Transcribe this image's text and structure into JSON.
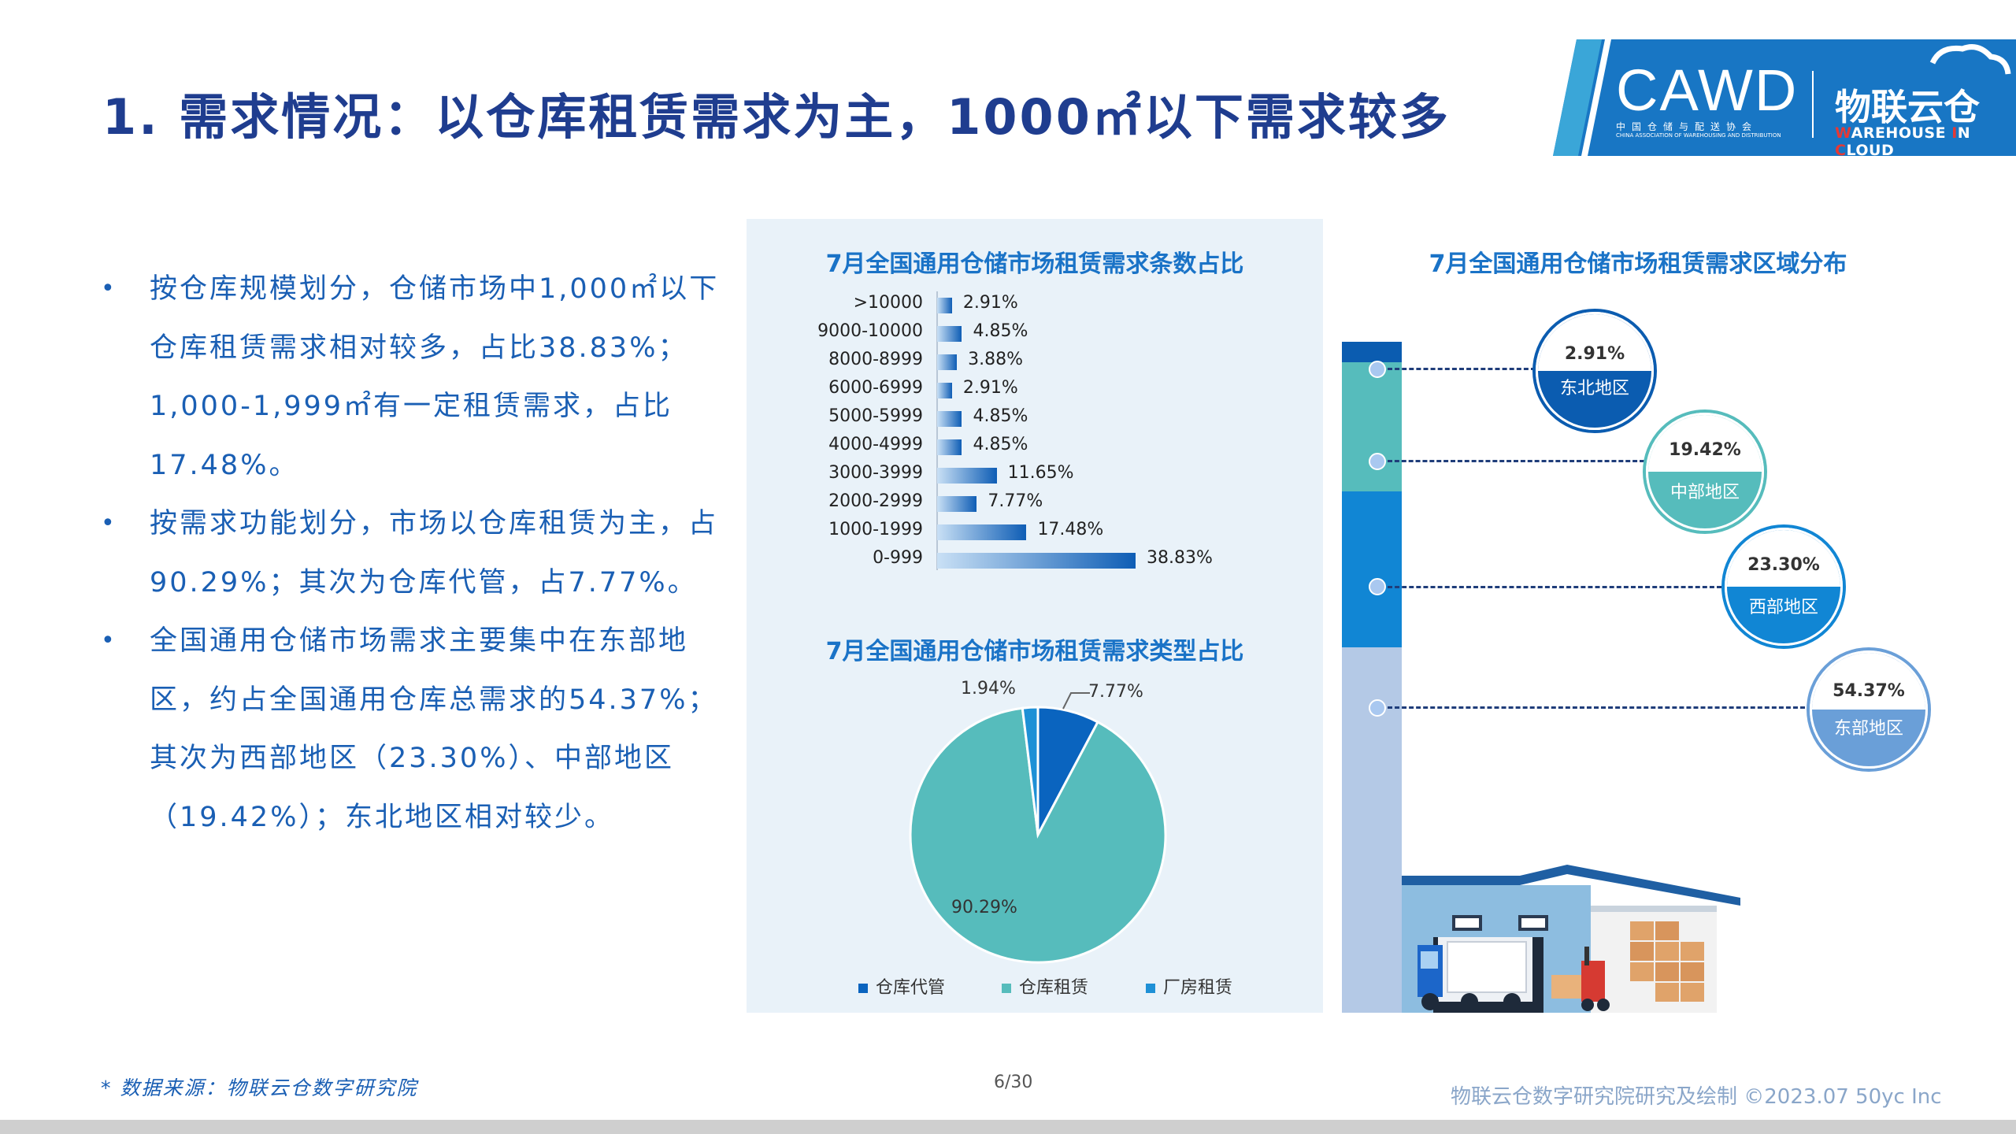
{
  "header": {
    "title": "1. 需求情况：以仓库租赁需求为主，1000㎡以下需求较多",
    "logo_cawd": "CAWD",
    "logo_cawd_cn": "中国仓储与配送协会",
    "logo_cawd_en": "CHINA ASSOCIATION OF WAREHOUSING AND DISTRIBUTION",
    "logo_wic_cn": "物联云仓",
    "logo_wic_en_w": "W",
    "logo_wic_en_1": "AREHOUSE ",
    "logo_wic_en_i": "I",
    "logo_wic_en_2": "N ",
    "logo_wic_en_c": "C",
    "logo_wic_en_3": "LOUD"
  },
  "bullets": [
    "按仓库规模划分，仓储市场中1,000㎡以下仓库租赁需求相对较多，占比38.83%；1,000-1,999㎡有一定租赁需求，占比17.48%。",
    "按需求功能划分，市场以仓库租赁为主，占90.29%；其次为仓库代管，占7.77%。",
    "全国通用仓储市场需求主要集中在东部地区，约占全国通用仓库总需求的54.37%；其次为西部地区（23.30%）、中部地区（19.42%）；东北地区相对较少。"
  ],
  "chart_data": [
    {
      "type": "bar",
      "title": "7月全国通用仓储市场租赁需求条数占比",
      "orientation": "horizontal",
      "categories": [
        ">10000",
        "9000-10000",
        "8000-8999",
        "6000-6999",
        "5000-5999",
        "4000-4999",
        "3000-3999",
        "2000-2999",
        "1000-1999",
        "0-999"
      ],
      "values": [
        2.91,
        4.85,
        3.88,
        2.91,
        4.85,
        4.85,
        11.65,
        7.77,
        17.48,
        38.83
      ],
      "labels": [
        "2.91%",
        "4.85%",
        "3.88%",
        "2.91%",
        "4.85%",
        "4.85%",
        "11.65%",
        "7.77%",
        "17.48%",
        "38.83%"
      ],
      "unit": "%"
    },
    {
      "type": "pie",
      "title": "7月全国通用仓储市场租赁需求类型占比",
      "categories": [
        "仓库代管",
        "仓库租赁",
        "厂房租赁"
      ],
      "values": [
        7.77,
        90.29,
        1.94
      ],
      "labels": [
        "7.77%",
        "90.29%",
        "1.94%"
      ],
      "colors": [
        "#0a64bf",
        "#56bcbc",
        "#1e90d6"
      ],
      "legend": "bottom"
    },
    {
      "type": "bar",
      "title": "7月全国通用仓储市场租赁需求区域分布",
      "orientation": "stacked-column",
      "categories": [
        "东北地区",
        "中部地区",
        "西部地区",
        "东部地区"
      ],
      "values": [
        2.91,
        19.42,
        23.3,
        54.37
      ],
      "labels": [
        "2.91%",
        "19.42%",
        "23.30%",
        "54.37%"
      ],
      "colors": [
        "#0b5cb0",
        "#56bcbc",
        "#1186d4",
        "#b4c9e6"
      ]
    }
  ],
  "footer": {
    "source": "* 数据来源：物联云仓数字研究院",
    "page": "6/30",
    "credit": "物联云仓数字研究院研究及绘制    ©2023.07 50yc Inc"
  }
}
